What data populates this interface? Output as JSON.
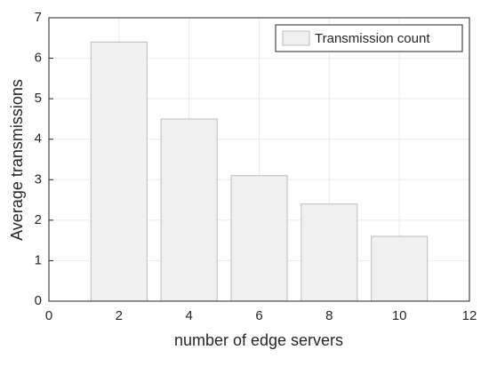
{
  "chart_data": {
    "type": "bar",
    "x": [
      2,
      4,
      6,
      8,
      10
    ],
    "series": [
      {
        "name": "Transmission count",
        "color": "#f0f0f0",
        "values": [
          6.4,
          4.5,
          3.1,
          2.4,
          1.6
        ]
      }
    ],
    "xlabel": "number of edge servers",
    "ylabel": "Average transmissions",
    "xlim": [
      0,
      12
    ],
    "xticks": [
      0,
      2,
      4,
      6,
      8,
      10,
      12
    ],
    "ylim": [
      0,
      7
    ],
    "yticks": [
      0,
      1,
      2,
      3,
      4,
      5,
      6,
      7
    ],
    "grid": true,
    "legend": "top-right"
  }
}
